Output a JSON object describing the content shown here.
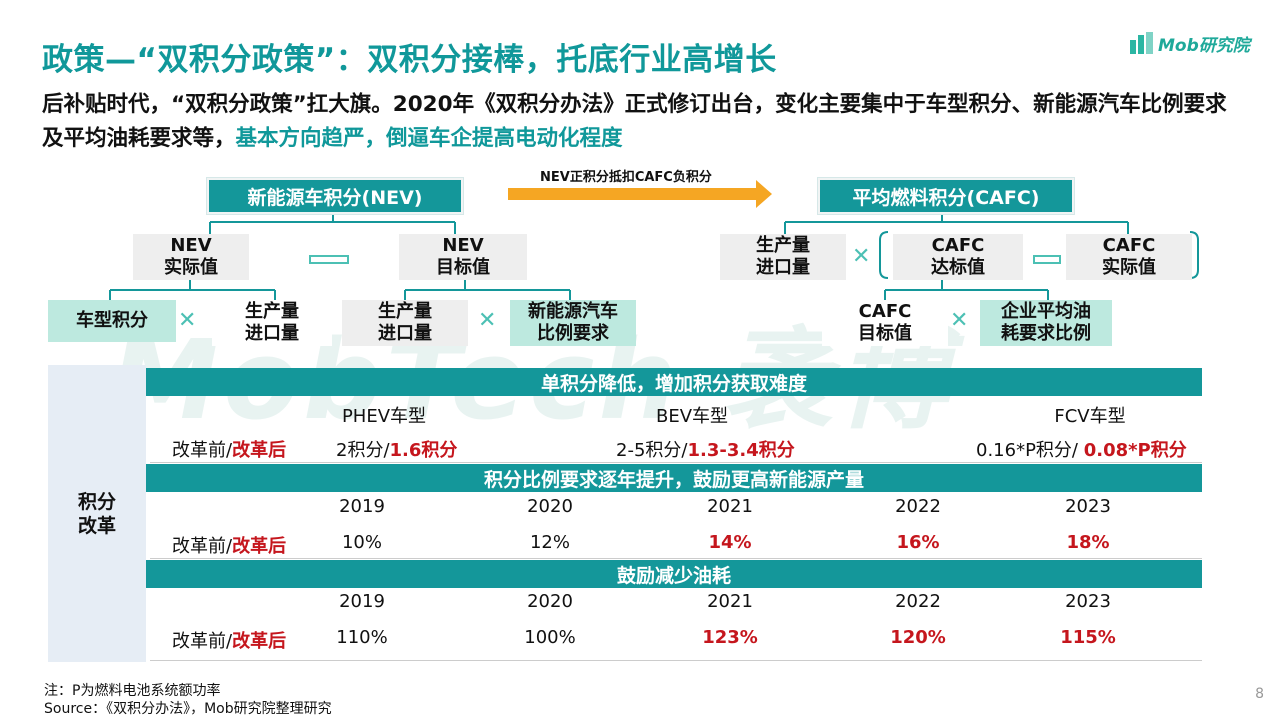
{
  "title": "政策—“双积分政策”：双积分接棒，托底行业高增长",
  "subtitle": {
    "normal": "后补贴时代，“双积分政策”扛大旗。2020年《双积分办法》正式修订出台，变化主要集中于车型积分、新能源汽车比例要求及平均油耗要求等，",
    "highlight": "基本方向趋严，倒逼车企提高电动化程度"
  },
  "logo": {
    "text": "Mob研究院",
    "icon": "mob-logo-icon"
  },
  "watermark": "MobTech 袤博",
  "diagram": {
    "nev_header": "新能源车积分(NEV)",
    "arrow_label": "NEV正积分抵扣CAFC负积分",
    "cafc_header": "平均燃料积分(CAFC)",
    "nev_actual": [
      "NEV",
      "实际值"
    ],
    "nev_target": [
      "NEV",
      "目标值"
    ],
    "model_score": "车型积分",
    "prod_import": [
      "生产量",
      "进口量"
    ],
    "nev_ratio": [
      "新能源汽车",
      "比例要求"
    ],
    "cafc_standard": [
      "CAFC",
      "达标值"
    ],
    "cafc_actual": [
      "CAFC",
      "实际值"
    ],
    "cafc_target": [
      "CAFC",
      "目标值"
    ],
    "company_ratio": [
      "企业平均油",
      "耗要求比例"
    ],
    "times_glyph": "✕",
    "minus_icon": "minus-icon"
  },
  "reform": {
    "side_label": [
      "积分",
      "改革"
    ],
    "before_after_prefix": "改革前/",
    "before_after_suffix": "改革后",
    "section1": {
      "band": "单积分降低，增加积分获取难度",
      "headers": [
        "PHEV车型",
        "BEV车型",
        "FCV车型"
      ],
      "values": [
        {
          "before": "2积分/",
          "after": "1.6积分"
        },
        {
          "before": "2-5积分/",
          "after": "1.3-3.4积分"
        },
        {
          "before": "0.16*P积分/ ",
          "after": "0.08*P积分"
        }
      ]
    },
    "section2": {
      "band": "积分比例要求逐年提升，鼓励更高新能源产量",
      "years": [
        "2019",
        "2020",
        "2021",
        "2022",
        "2023"
      ],
      "values": [
        "10%",
        "12%",
        "14%",
        "16%",
        "18%"
      ],
      "red_from_index": 2
    },
    "section3": {
      "band": "鼓励减少油耗",
      "years": [
        "2019",
        "2020",
        "2021",
        "2022",
        "2023"
      ],
      "values": [
        "110%",
        "100%",
        "123%",
        "120%",
        "115%"
      ],
      "red_from_index": 2
    }
  },
  "footer": {
    "note": "注：P为燃料电池系统额功率",
    "source": "Source：《双积分办法》，Mob研究院整理研究",
    "page": "8"
  },
  "colors": {
    "teal": "#14979a",
    "mint": "#bde9df",
    "red": "#c5161d",
    "gray": "#eeeeee"
  }
}
